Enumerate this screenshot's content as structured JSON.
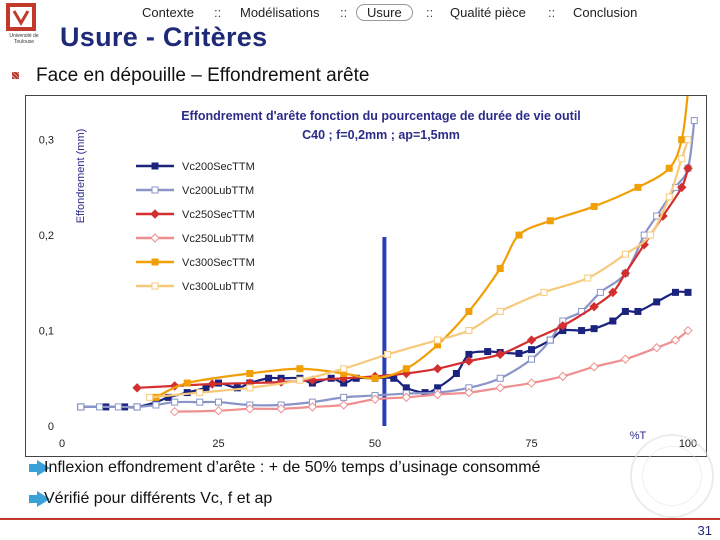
{
  "logo": {
    "text": "Université de Toulouse"
  },
  "nav": {
    "items": [
      "Contexte",
      "Modélisations",
      "Usure",
      "Qualité pièce",
      "Conclusion"
    ],
    "separator": "::",
    "active_index": 2
  },
  "slide": {
    "title": "Usure - Critères",
    "subtitle": "Face en dépouille – Effondrement arête",
    "points": [
      "Inflexion effondrement d’arête : + de 50% temps d’usinage consommé",
      "Vérifié pour différents Vc, f et ap"
    ],
    "page_number": "31"
  },
  "chart_data": {
    "type": "line",
    "title_line1": "Effondrement d'arête fonction du pourcentage de durée de vie outil",
    "title_line2": "C40 ; f=0,2mm ; ap=1,5mm",
    "xlabel": "%T",
    "ylabel": "Effondrement (mm)",
    "xlim": [
      0,
      100
    ],
    "ylim": [
      0,
      0.33
    ],
    "xticks": [
      0,
      25,
      50,
      75,
      100
    ],
    "xtick_labels": [
      "0",
      "25",
      "50",
      "75",
      "100"
    ],
    "yticks": [
      0,
      0.1,
      0.2,
      0.3
    ],
    "ytick_labels": [
      "0",
      "0,1",
      "0,2",
      "0,3"
    ],
    "grid": false,
    "legend_position": "top-left",
    "vertical_marker": {
      "x": 51.5,
      "color": "#2b3fb5"
    },
    "series": [
      {
        "name": "Vc200SecTTM",
        "color": "#1a237e",
        "marker": "square-filled",
        "points": [
          [
            3,
            0.02
          ],
          [
            7,
            0.02
          ],
          [
            10,
            0.02
          ],
          [
            12,
            0.02
          ],
          [
            15,
            0.025
          ],
          [
            17,
            0.03
          ],
          [
            20,
            0.035
          ],
          [
            23,
            0.04
          ],
          [
            25,
            0.045
          ],
          [
            28,
            0.04
          ],
          [
            30,
            0.045
          ],
          [
            33,
            0.05
          ],
          [
            35,
            0.05
          ],
          [
            38,
            0.05
          ],
          [
            40,
            0.045
          ],
          [
            43,
            0.05
          ],
          [
            45,
            0.045
          ],
          [
            47,
            0.05
          ],
          [
            50,
            0.05
          ],
          [
            53,
            0.05
          ],
          [
            55,
            0.04
          ],
          [
            58,
            0.035
          ],
          [
            60,
            0.04
          ],
          [
            63,
            0.055
          ],
          [
            65,
            0.075
          ],
          [
            68,
            0.078
          ],
          [
            70,
            0.077
          ],
          [
            73,
            0.076
          ],
          [
            75,
            0.08
          ],
          [
            78,
            0.09
          ],
          [
            80,
            0.1
          ],
          [
            83,
            0.1
          ],
          [
            85,
            0.102
          ],
          [
            88,
            0.11
          ],
          [
            90,
            0.12
          ],
          [
            92,
            0.12
          ],
          [
            95,
            0.13
          ],
          [
            98,
            0.14
          ],
          [
            100,
            0.14
          ]
        ]
      },
      {
        "name": "Vc200LubTTM",
        "color": "#8a94c8",
        "marker": "square-open",
        "points": [
          [
            3,
            0.02
          ],
          [
            6,
            0.02
          ],
          [
            9,
            0.02
          ],
          [
            12,
            0.02
          ],
          [
            15,
            0.022
          ],
          [
            18,
            0.025
          ],
          [
            22,
            0.025
          ],
          [
            25,
            0.025
          ],
          [
            30,
            0.022
          ],
          [
            35,
            0.022
          ],
          [
            40,
            0.025
          ],
          [
            45,
            0.03
          ],
          [
            50,
            0.032
          ],
          [
            55,
            0.034
          ],
          [
            60,
            0.035
          ],
          [
            65,
            0.04
          ],
          [
            70,
            0.05
          ],
          [
            75,
            0.07
          ],
          [
            78,
            0.09
          ],
          [
            80,
            0.11
          ],
          [
            83,
            0.12
          ],
          [
            86,
            0.14
          ],
          [
            90,
            0.16
          ],
          [
            93,
            0.2
          ],
          [
            95,
            0.22
          ],
          [
            98,
            0.25
          ],
          [
            100,
            0.27
          ],
          [
            101,
            0.32
          ]
        ]
      },
      {
        "name": "Vc250SecTTM",
        "color": "#d32f2f",
        "marker": "diamond-filled",
        "points": [
          [
            12,
            0.04
          ],
          [
            18,
            0.042
          ],
          [
            24,
            0.044
          ],
          [
            30,
            0.045
          ],
          [
            35,
            0.046
          ],
          [
            40,
            0.048
          ],
          [
            45,
            0.05
          ],
          [
            50,
            0.052
          ],
          [
            55,
            0.055
          ],
          [
            60,
            0.06
          ],
          [
            65,
            0.068
          ],
          [
            70,
            0.075
          ],
          [
            75,
            0.09
          ],
          [
            80,
            0.105
          ],
          [
            85,
            0.125
          ],
          [
            88,
            0.14
          ],
          [
            90,
            0.16
          ],
          [
            93,
            0.19
          ],
          [
            96,
            0.22
          ],
          [
            99,
            0.25
          ],
          [
            100,
            0.27
          ]
        ]
      },
      {
        "name": "Vc250LubTTM",
        "color": "#ef8f8f",
        "marker": "diamond-open",
        "points": [
          [
            18,
            0.015
          ],
          [
            25,
            0.016
          ],
          [
            30,
            0.018
          ],
          [
            35,
            0.018
          ],
          [
            40,
            0.02
          ],
          [
            45,
            0.022
          ],
          [
            50,
            0.028
          ],
          [
            55,
            0.03
          ],
          [
            60,
            0.033
          ],
          [
            65,
            0.035
          ],
          [
            70,
            0.04
          ],
          [
            75,
            0.045
          ],
          [
            80,
            0.052
          ],
          [
            85,
            0.062
          ],
          [
            90,
            0.07
          ],
          [
            95,
            0.082
          ],
          [
            98,
            0.09
          ],
          [
            100,
            0.1
          ]
        ]
      },
      {
        "name": "Vc300SecTTM",
        "color": "#f29f05",
        "marker": "square-filled",
        "points": [
          [
            15,
            0.03
          ],
          [
            20,
            0.045
          ],
          [
            30,
            0.055
          ],
          [
            38,
            0.06
          ],
          [
            45,
            0.055
          ],
          [
            50,
            0.05
          ],
          [
            55,
            0.06
          ],
          [
            60,
            0.085
          ],
          [
            65,
            0.12
          ],
          [
            70,
            0.165
          ],
          [
            73,
            0.2
          ],
          [
            78,
            0.215
          ],
          [
            85,
            0.23
          ],
          [
            92,
            0.25
          ],
          [
            97,
            0.27
          ],
          [
            99,
            0.3
          ],
          [
            100,
            0.35
          ]
        ]
      },
      {
        "name": "Vc300LubTTM",
        "color": "#f7c97a",
        "marker": "square-open",
        "points": [
          [
            14,
            0.03
          ],
          [
            22,
            0.035
          ],
          [
            30,
            0.04
          ],
          [
            38,
            0.048
          ],
          [
            45,
            0.06
          ],
          [
            52,
            0.075
          ],
          [
            60,
            0.09
          ],
          [
            65,
            0.1
          ],
          [
            70,
            0.12
          ],
          [
            77,
            0.14
          ],
          [
            84,
            0.155
          ],
          [
            90,
            0.18
          ],
          [
            94,
            0.2
          ],
          [
            97,
            0.24
          ],
          [
            99,
            0.28
          ],
          [
            100,
            0.3
          ]
        ]
      }
    ]
  }
}
